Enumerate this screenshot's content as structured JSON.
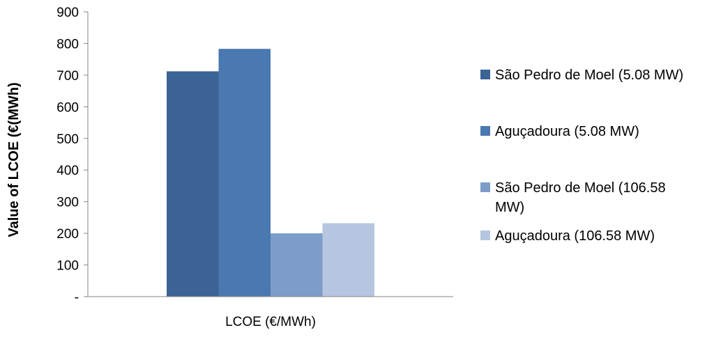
{
  "chart_data": {
    "type": "bar",
    "categories": [
      "LCOE (€/MWh)"
    ],
    "series": [
      {
        "name": "São Pedro de Moel (5.08 MW)",
        "values": [
          712
        ],
        "color": "#3b6395"
      },
      {
        "name": "Aguçadoura (5.08 MW)",
        "values": [
          783
        ],
        "color": "#4a78b0"
      },
      {
        "name": "São Pedro de Moel (106.58 MW)",
        "values": [
          200
        ],
        "color": "#7d9cc9"
      },
      {
        "name": "Aguçadoura (106.58 MW)",
        "values": [
          232
        ],
        "color": "#b6c6e0"
      }
    ],
    "legend_lines": [
      [
        "São Pedro de Moel (5.08 MW)"
      ],
      [
        "Aguçadoura (5.08 MW)"
      ],
      [
        "São Pedro de Moel (106.58",
        "MW)"
      ],
      [
        "Aguçadoura (106.58 MW)"
      ]
    ],
    "ylabel": "Value of LCOE (€(MWh)",
    "xlabel": "",
    "ylim": [
      0,
      900
    ],
    "yticks": [
      {
        "value": 0,
        "label": "-"
      },
      {
        "value": 100,
        "label": "100"
      },
      {
        "value": 200,
        "label": "200"
      },
      {
        "value": 300,
        "label": "300"
      },
      {
        "value": 400,
        "label": "400"
      },
      {
        "value": 500,
        "label": "500"
      },
      {
        "value": 600,
        "label": "600"
      },
      {
        "value": 700,
        "label": "700"
      },
      {
        "value": 800,
        "label": "800"
      },
      {
        "value": 900,
        "label": "900"
      }
    ],
    "grid": false,
    "legend_position": "right"
  }
}
